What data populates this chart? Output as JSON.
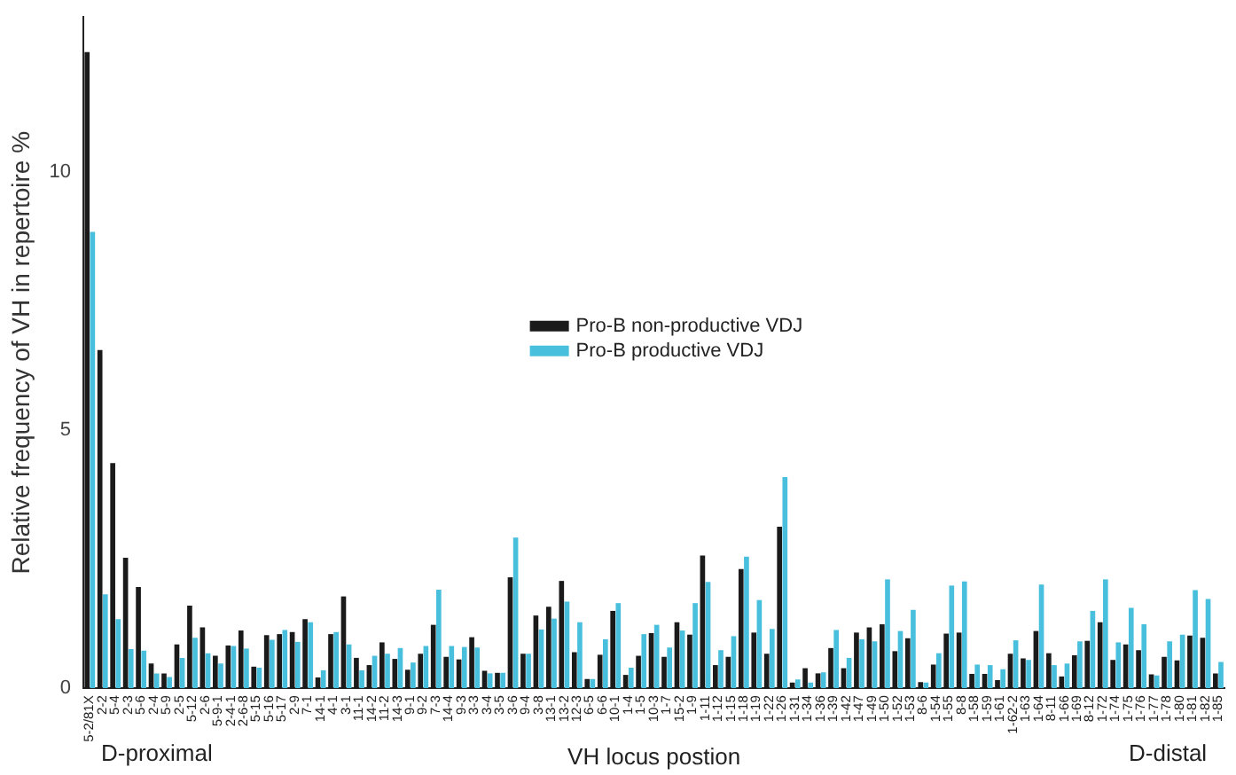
{
  "chart_data": {
    "type": "bar",
    "xlabel": "VH locus postion",
    "ylabel": "Relative frequency of VH in repertoire %",
    "categories": [
      "5-2/81X",
      "2-2",
      "5-4",
      "2-3",
      "5-6",
      "2-4",
      "5-9",
      "2-5",
      "5-12",
      "2-6",
      "5-9-1",
      "2-4-1",
      "2-6-8",
      "5-15",
      "5-16",
      "5-17",
      "2-9",
      "7-1",
      "14-1",
      "4-1",
      "3-1",
      "11-1",
      "14-2",
      "11-2",
      "14-3",
      "9-1",
      "9-2",
      "7-3",
      "14-4",
      "9-3",
      "3-3",
      "3-4",
      "3-5",
      "3-6",
      "9-4",
      "3-8",
      "13-1",
      "13-2",
      "12-3",
      "6-5",
      "6-6",
      "10-1",
      "1-4",
      "1-5",
      "10-3",
      "1-7",
      "15-2",
      "1-9",
      "1-11",
      "1-12",
      "1-15",
      "1-18",
      "1-19",
      "1-22",
      "1-26",
      "1-31",
      "1-34",
      "1-36",
      "1-39",
      "1-42",
      "1-47",
      "1-49",
      "1-50",
      "1-52",
      "1-53",
      "8-6",
      "1-54",
      "1-55",
      "8-8",
      "1-58",
      "1-59",
      "1-61",
      "1-62-2",
      "1-63",
      "1-64",
      "8-11",
      "1-66",
      "1-69",
      "8-12",
      "1-72",
      "1-74",
      "1-75",
      "1-76",
      "1-77",
      "1-78",
      "1-80",
      "1-81",
      "1-82",
      "1-85"
    ],
    "series": [
      {
        "name": "Pro-B non-productive VDJ",
        "color": "#1a1a1a",
        "values": [
          12.32,
          6.55,
          4.36,
          2.53,
          1.96,
          0.48,
          0.29,
          0.85,
          1.6,
          1.18,
          0.63,
          0.83,
          1.12,
          0.42,
          1.03,
          1.05,
          1.09,
          1.34,
          0.21,
          1.05,
          1.78,
          0.59,
          0.45,
          0.89,
          0.57,
          0.36,
          0.67,
          1.23,
          0.61,
          0.56,
          0.99,
          0.34,
          0.3,
          2.15,
          0.67,
          1.41,
          1.58,
          2.08,
          0.7,
          0.18,
          0.65,
          1.5,
          0.26,
          0.63,
          1.07,
          0.61,
          1.28,
          1.04,
          2.57,
          0.45,
          0.61,
          2.31,
          1.08,
          0.67,
          3.13,
          0.11,
          0.39,
          0.29,
          0.78,
          0.39,
          1.08,
          1.18,
          1.24,
          0.72,
          0.97,
          0.12,
          0.46,
          1.06,
          1.08,
          0.28,
          0.28,
          0.16,
          0.67,
          0.58,
          1.11,
          0.68,
          0.23,
          0.64,
          0.92,
          1.28,
          0.55,
          0.85,
          0.74,
          0.27,
          0.61,
          0.54,
          1.02,
          0.98,
          0.29
        ]
      },
      {
        "name": "Pro-B productive VDJ",
        "color": "#48bfdc",
        "values": [
          8.84,
          1.82,
          1.34,
          0.76,
          0.73,
          0.29,
          0.22,
          0.59,
          0.98,
          0.68,
          0.48,
          0.82,
          0.77,
          0.4,
          0.94,
          1.13,
          0.9,
          1.28,
          0.35,
          1.09,
          0.85,
          0.35,
          0.63,
          0.67,
          0.78,
          0.5,
          0.82,
          1.91,
          0.82,
          0.8,
          0.79,
          0.29,
          0.3,
          2.92,
          0.67,
          1.14,
          1.35,
          1.68,
          1.28,
          0.18,
          0.95,
          1.65,
          0.4,
          1.05,
          1.23,
          0.79,
          1.12,
          1.65,
          2.06,
          0.74,
          1.01,
          2.55,
          1.71,
          1.15,
          4.09,
          0.17,
          0.11,
          0.31,
          1.13,
          0.59,
          0.95,
          0.91,
          2.11,
          1.11,
          1.52,
          0.11,
          0.68,
          1.99,
          2.07,
          0.46,
          0.45,
          0.37,
          0.93,
          0.55,
          2.01,
          0.45,
          0.48,
          0.91,
          1.5,
          2.11,
          0.89,
          1.56,
          1.24,
          0.25,
          0.91,
          1.04,
          1.9,
          1.73,
          0.51
        ]
      }
    ],
    "ylim": [
      0,
      13
    ],
    "yticks": [
      0,
      5,
      10
    ],
    "grid": false,
    "legend": "top",
    "annotations": [
      "D-proximal",
      "D-distal"
    ]
  }
}
